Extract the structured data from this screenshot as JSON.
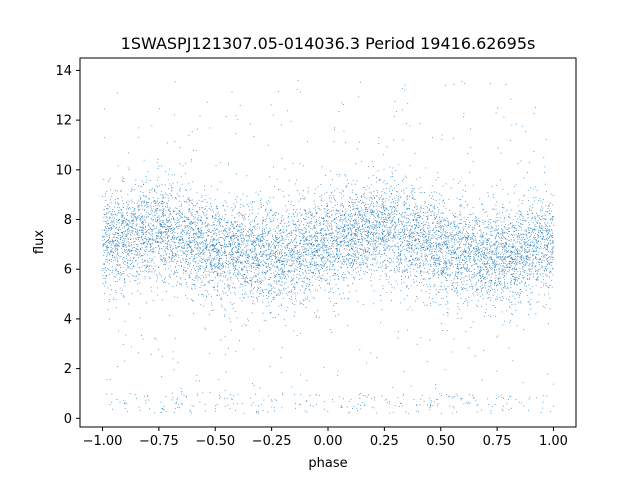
{
  "chart_data": {
    "type": "scatter",
    "title": "1SWASPJ121307.05-014036.3 Period 19416.62695s",
    "xlabel": "phase",
    "ylabel": "flux",
    "xlim": [
      -1.1,
      1.1
    ],
    "ylim": [
      -0.35,
      14.5
    ],
    "x_ticks": [
      -1.0,
      -0.75,
      -0.5,
      -0.25,
      0.0,
      0.25,
      0.5,
      0.75,
      1.0
    ],
    "x_tick_labels": [
      "−1.00",
      "−0.75",
      "−0.50",
      "−0.25",
      "0.00",
      "0.25",
      "0.50",
      "0.75",
      "1.00"
    ],
    "y_ticks": [
      0,
      2,
      4,
      6,
      8,
      10,
      12,
      14
    ],
    "y_tick_labels": [
      "0",
      "2",
      "4",
      "6",
      "8",
      "10",
      "12",
      "14"
    ],
    "grid": false,
    "legend": "none",
    "marker_color": "#1f77b4",
    "series": [
      {
        "x": [
          -1.0,
          -0.9,
          -0.8,
          -0.7,
          -0.6,
          -0.5,
          -0.4,
          -0.3,
          -0.25,
          -0.2,
          -0.1,
          0.0,
          0.1,
          0.2,
          0.25,
          0.3,
          0.4,
          0.5,
          0.6,
          0.7,
          0.75,
          0.8,
          0.9,
          1.0
        ],
        "y": [
          7.1,
          7.4,
          7.6,
          7.5,
          7.2,
          6.9,
          6.7,
          6.6,
          6.6,
          6.6,
          6.8,
          7.0,
          7.3,
          7.5,
          7.6,
          7.5,
          7.2,
          6.9,
          6.6,
          6.5,
          6.5,
          6.6,
          6.8,
          7.1
        ],
        "spread": 1.0,
        "point_count": 9000,
        "outlier_band": [
          0.2,
          1.0
        ]
      }
    ]
  }
}
